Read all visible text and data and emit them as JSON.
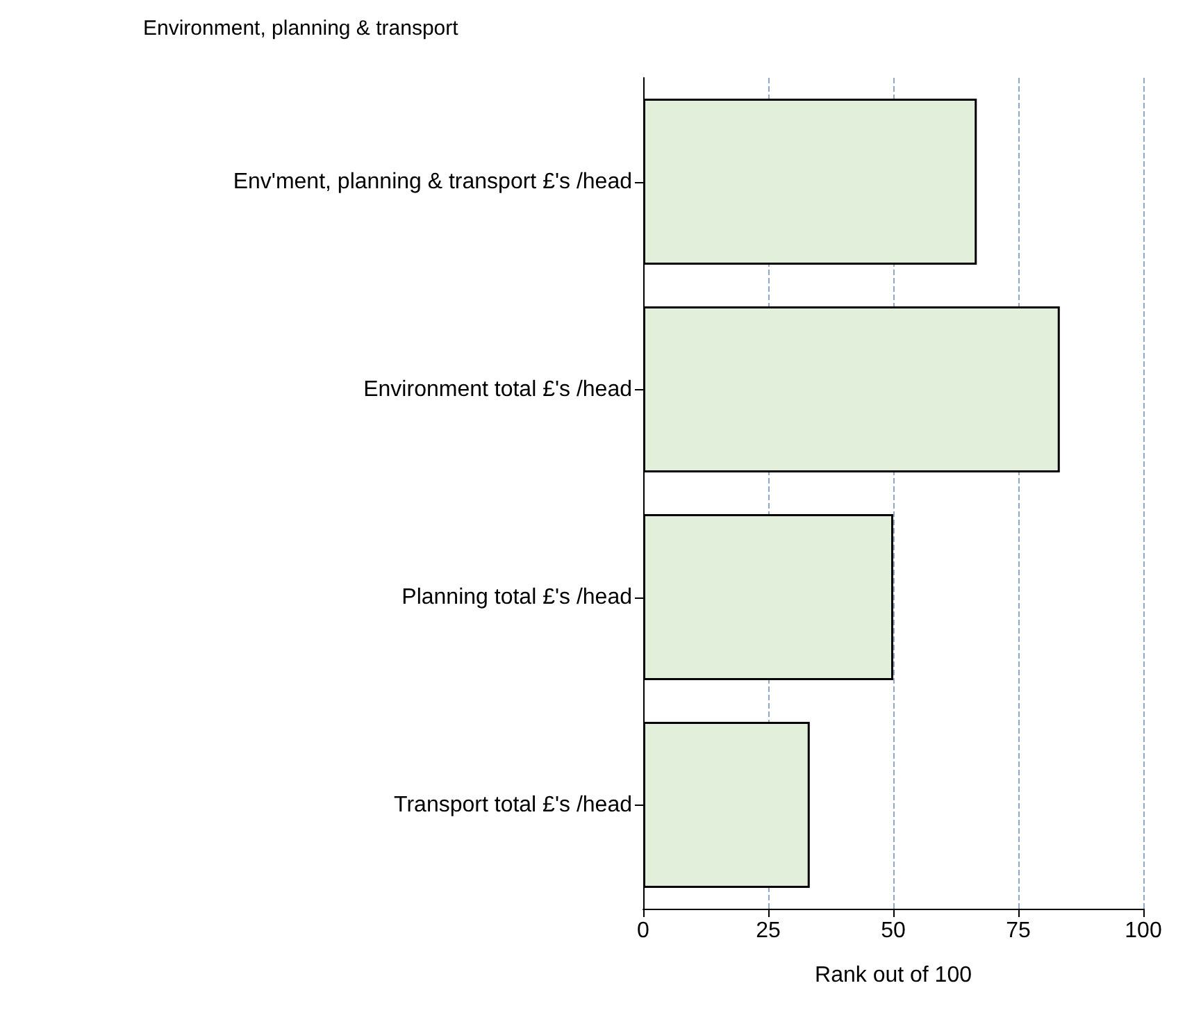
{
  "chart_data": {
    "type": "bar",
    "orientation": "horizontal",
    "title": "Environment, planning & transport",
    "xlabel": "Rank out of 100",
    "categories": [
      "Env'ment, planning & transport £'s /head",
      "Environment total £'s /head",
      "Planning total £'s /head",
      "Transport total £'s /head"
    ],
    "values": [
      66.7,
      83.3,
      50,
      33.3
    ],
    "color": "#e2efda",
    "xlim": [
      0,
      100
    ],
    "xticks": [
      0,
      25,
      50,
      75,
      100
    ],
    "grid": "x"
  }
}
